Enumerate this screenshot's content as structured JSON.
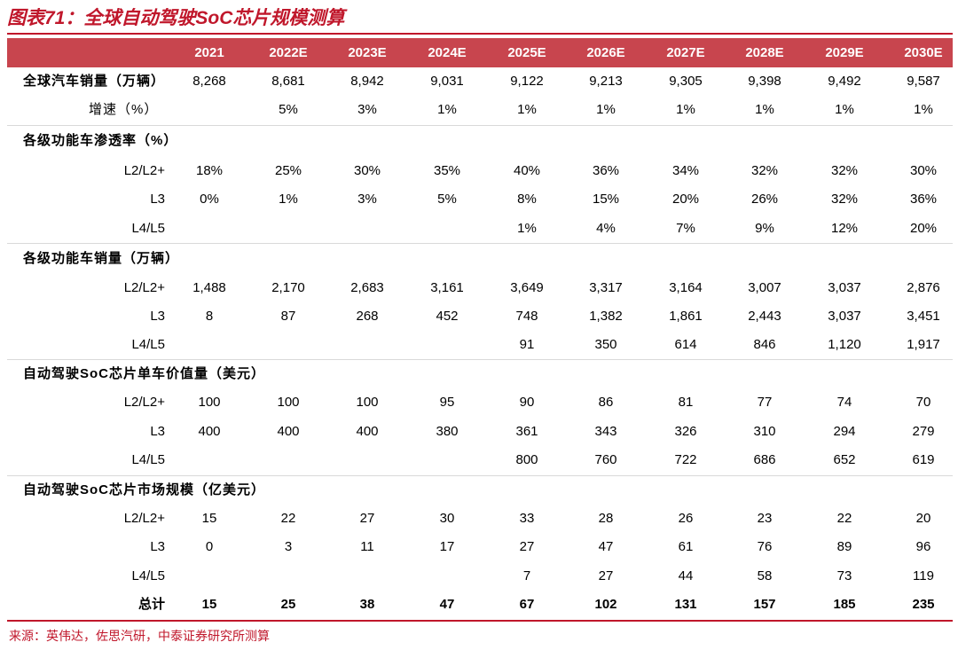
{
  "title": "图表71：全球自动驾驶SoC芯片规模测算",
  "source": "来源：英伟达，佐思汽研，中泰证券研究所测算",
  "chart_data": {
    "type": "table",
    "title": "图表71：全球自动驾驶SoC芯片规模测算",
    "columns": [
      "2021",
      "2022E",
      "2023E",
      "2024E",
      "2025E",
      "2026E",
      "2027E",
      "2028E",
      "2029E",
      "2030E"
    ],
    "rows": [
      {
        "label": "全球汽车销量（万辆）",
        "kind": "main",
        "values": [
          "8,268",
          "8,681",
          "8,942",
          "9,031",
          "9,122",
          "9,213",
          "9,305",
          "9,398",
          "9,492",
          "9,587"
        ]
      },
      {
        "label": "增速（%）",
        "kind": "growth",
        "values": [
          "",
          "5%",
          "3%",
          "1%",
          "1%",
          "1%",
          "1%",
          "1%",
          "1%",
          "1%"
        ]
      },
      {
        "label": "各级功能车渗透率（%）",
        "kind": "section",
        "values": []
      },
      {
        "label": "L2/L2+",
        "kind": "sub",
        "values": [
          "18%",
          "25%",
          "30%",
          "35%",
          "40%",
          "36%",
          "34%",
          "32%",
          "32%",
          "30%"
        ]
      },
      {
        "label": "L3",
        "kind": "sub",
        "values": [
          "0%",
          "1%",
          "3%",
          "5%",
          "8%",
          "15%",
          "20%",
          "26%",
          "32%",
          "36%"
        ]
      },
      {
        "label": "L4/L5",
        "kind": "sub",
        "values": [
          "",
          "",
          "",
          "",
          "1%",
          "4%",
          "7%",
          "9%",
          "12%",
          "20%"
        ]
      },
      {
        "label": "各级功能车销量（万辆）",
        "kind": "section",
        "values": []
      },
      {
        "label": "L2/L2+",
        "kind": "sub",
        "values": [
          "1,488",
          "2,170",
          "2,683",
          "3,161",
          "3,649",
          "3,317",
          "3,164",
          "3,007",
          "3,037",
          "2,876"
        ]
      },
      {
        "label": "L3",
        "kind": "sub",
        "values": [
          "8",
          "87",
          "268",
          "452",
          "748",
          "1,382",
          "1,861",
          "2,443",
          "3,037",
          "3,451"
        ]
      },
      {
        "label": "L4/L5",
        "kind": "sub",
        "values": [
          "",
          "",
          "",
          "",
          "91",
          "350",
          "614",
          "846",
          "1,120",
          "1,917"
        ]
      },
      {
        "label": "自动驾驶SoC芯片单车价值量（美元）",
        "kind": "section",
        "values": []
      },
      {
        "label": "L2/L2+",
        "kind": "sub",
        "values": [
          "100",
          "100",
          "100",
          "95",
          "90",
          "86",
          "81",
          "77",
          "74",
          "70"
        ]
      },
      {
        "label": "L3",
        "kind": "sub",
        "values": [
          "400",
          "400",
          "400",
          "380",
          "361",
          "343",
          "326",
          "310",
          "294",
          "279"
        ]
      },
      {
        "label": "L4/L5",
        "kind": "sub",
        "values": [
          "",
          "",
          "",
          "",
          "800",
          "760",
          "722",
          "686",
          "652",
          "619"
        ]
      },
      {
        "label": "自动驾驶SoC芯片市场规模（亿美元）",
        "kind": "section",
        "values": []
      },
      {
        "label": "L2/L2+",
        "kind": "sub",
        "values": [
          "15",
          "22",
          "27",
          "30",
          "33",
          "28",
          "26",
          "23",
          "22",
          "20"
        ]
      },
      {
        "label": "L3",
        "kind": "sub",
        "values": [
          "0",
          "3",
          "11",
          "17",
          "27",
          "47",
          "61",
          "76",
          "89",
          "96"
        ]
      },
      {
        "label": "L4/L5",
        "kind": "sub",
        "values": [
          "",
          "",
          "",
          "",
          "7",
          "27",
          "44",
          "58",
          "73",
          "119"
        ]
      },
      {
        "label": "总计",
        "kind": "total",
        "values": [
          "15",
          "25",
          "38",
          "47",
          "67",
          "102",
          "131",
          "157",
          "185",
          "235"
        ]
      }
    ]
  },
  "colors": {
    "accent": "#c0172b",
    "header_bg": "#c8454e",
    "header_text": "#ffffff",
    "divider": "#d9d9d9"
  }
}
